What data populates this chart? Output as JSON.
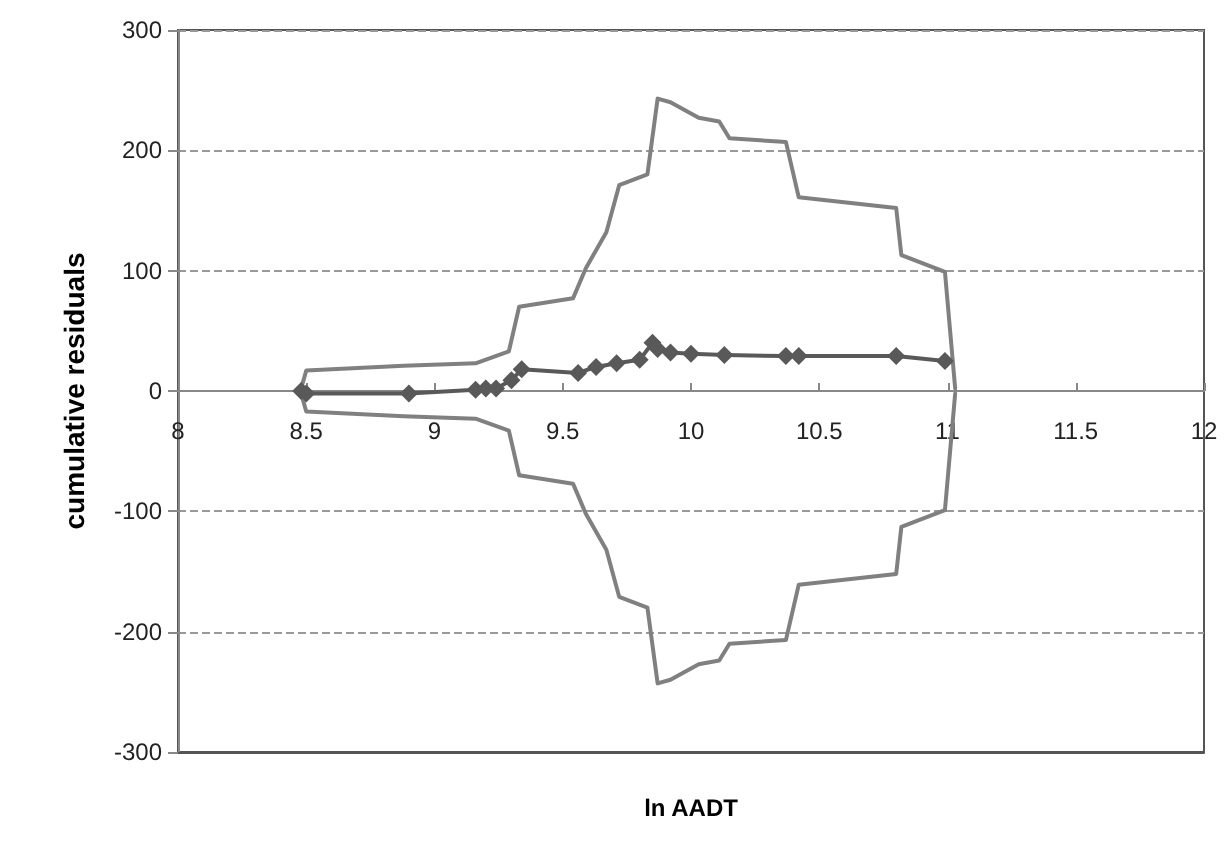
{
  "chart_data": {
    "type": "line",
    "xlabel": "ln AADT",
    "ylabel": "cumulative residuals",
    "xlim": [
      8,
      12
    ],
    "xticks": [
      8,
      8.5,
      9,
      9.5,
      10,
      10.5,
      11,
      11.5,
      12
    ],
    "ylim": [
      -300,
      300
    ],
    "yticks": [
      -300,
      -200,
      -100,
      0,
      100,
      200,
      300
    ],
    "grid": "y",
    "line_style": "solid",
    "series": [
      {
        "color": "#808080",
        "marker": "none",
        "x": [
          8.48,
          8.5,
          8.88,
          9.16,
          9.29,
          9.33,
          9.54,
          9.59,
          9.67,
          9.72,
          9.83,
          9.87,
          9.92,
          10.03,
          10.11,
          10.15,
          10.37,
          10.42,
          10.8,
          10.82,
          10.99,
          11.03
        ],
        "values": [
          2,
          17,
          21,
          23,
          33,
          70,
          77,
          102,
          132,
          171,
          180,
          243,
          240,
          227,
          224,
          210,
          207,
          161,
          152,
          113,
          99,
          2
        ]
      },
      {
        "color": "#808080",
        "marker": "none",
        "x": [
          8.48,
          8.5,
          8.88,
          9.16,
          9.29,
          9.33,
          9.54,
          9.59,
          9.67,
          9.72,
          9.83,
          9.87,
          9.92,
          10.03,
          10.11,
          10.15,
          10.37,
          10.42,
          10.8,
          10.82,
          10.99,
          11.03
        ],
        "values": [
          -2,
          -17,
          -21,
          -23,
          -33,
          -70,
          -77,
          -102,
          -132,
          -171,
          -180,
          -243,
          -240,
          -227,
          -224,
          -210,
          -207,
          -161,
          -152,
          -113,
          -99,
          -2
        ]
      },
      {
        "color": "#595959",
        "marker": "diamond",
        "x": [
          8.48,
          8.5,
          8.9,
          9.16,
          9.2,
          9.24,
          9.3,
          9.34,
          9.56,
          9.63,
          9.71,
          9.8,
          9.85,
          9.87,
          9.92,
          10.0,
          10.13,
          10.37,
          10.42,
          10.8,
          10.99
        ],
        "values": [
          0,
          -2,
          -2,
          1,
          2,
          2,
          9,
          18,
          15,
          20,
          23,
          26,
          40,
          35,
          32,
          31,
          30,
          29,
          29,
          29,
          25
        ]
      }
    ]
  }
}
